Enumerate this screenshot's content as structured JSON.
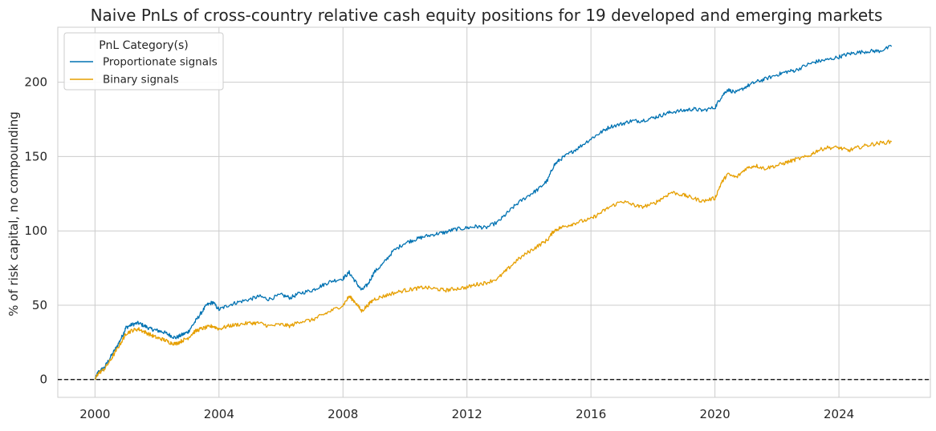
{
  "chart_data": {
    "type": "line",
    "title": "Naive PnLs of cross-country relative cash equity positions for 19 developed and emerging markets",
    "xlabel": "",
    "ylabel": "% of risk capital, no compounding",
    "xlim": [
      1998.8,
      2026.95
    ],
    "ylim": [
      -12,
      237
    ],
    "x_ticks": [
      2000,
      2004,
      2008,
      2012,
      2016,
      2020,
      2024
    ],
    "x_tick_labels": [
      "2000",
      "2004",
      "2008",
      "2012",
      "2016",
      "2020",
      "2024"
    ],
    "y_ticks": [
      0,
      50,
      100,
      150,
      200
    ],
    "y_tick_labels": [
      "0",
      "50",
      "100",
      "150",
      "200"
    ],
    "grid": true,
    "zero_line": {
      "value": 0,
      "style": "dashed",
      "color": "#000000"
    },
    "legend": {
      "title": "PnL Category(s)",
      "placement": "top-left"
    },
    "series": [
      {
        "name": "Proportionate signals",
        "color": "#0072b2",
        "x": [
          2000.0,
          2000.1,
          2000.3,
          2000.5,
          2000.7,
          2000.9,
          2001.0,
          2001.2,
          2001.4,
          2001.6,
          2001.8,
          2002.0,
          2002.2,
          2002.4,
          2002.6,
          2002.8,
          2003.0,
          2003.2,
          2003.4,
          2003.6,
          2003.8,
          2004.0,
          2004.3,
          2004.6,
          2005.0,
          2005.3,
          2005.6,
          2006.0,
          2006.3,
          2006.6,
          2007.0,
          2007.3,
          2007.6,
          2008.0,
          2008.2,
          2008.4,
          2008.6,
          2008.8,
          2009.0,
          2009.3,
          2009.6,
          2010.0,
          2010.3,
          2010.6,
          2011.0,
          2011.3,
          2011.6,
          2012.0,
          2012.3,
          2012.6,
          2013.0,
          2013.3,
          2013.6,
          2014.0,
          2014.3,
          2014.6,
          2014.8,
          2015.0,
          2015.3,
          2015.6,
          2016.0,
          2016.3,
          2016.6,
          2017.0,
          2017.3,
          2017.6,
          2018.0,
          2018.3,
          2018.6,
          2019.0,
          2019.3,
          2019.6,
          2020.0,
          2020.2,
          2020.4,
          2020.7,
          2021.0,
          2021.3,
          2021.6,
          2022.0,
          2022.3,
          2022.6,
          2023.0,
          2023.3,
          2023.6,
          2024.0,
          2024.3,
          2024.6,
          2025.0,
          2025.3,
          2025.7
        ],
        "values": [
          0,
          5,
          8,
          15,
          22,
          30,
          35,
          37,
          38,
          36,
          34,
          33,
          32,
          30,
          28,
          30,
          32,
          38,
          44,
          50,
          52,
          47,
          50,
          52,
          54,
          56,
          54,
          57,
          55,
          58,
          60,
          63,
          66,
          68,
          72,
          66,
          60,
          64,
          72,
          78,
          86,
          92,
          94,
          96,
          98,
          99,
          101,
          102,
          103,
          102,
          106,
          112,
          118,
          124,
          128,
          134,
          144,
          148,
          152,
          156,
          162,
          166,
          170,
          172,
          174,
          174,
          176,
          178,
          180,
          181,
          182,
          181,
          183,
          190,
          195,
          193,
          197,
          200,
          202,
          205,
          207,
          208,
          212,
          214,
          215,
          217,
          219,
          220,
          221,
          221,
          224
        ]
      },
      {
        "name": "Binary signals",
        "color": "#e69f00",
        "x": [
          2000.0,
          2000.1,
          2000.3,
          2000.5,
          2000.7,
          2000.9,
          2001.0,
          2001.2,
          2001.4,
          2001.6,
          2001.8,
          2002.0,
          2002.2,
          2002.4,
          2002.6,
          2002.8,
          2003.0,
          2003.2,
          2003.4,
          2003.6,
          2003.8,
          2004.0,
          2004.3,
          2004.6,
          2005.0,
          2005.3,
          2005.6,
          2006.0,
          2006.3,
          2006.6,
          2007.0,
          2007.3,
          2007.6,
          2008.0,
          2008.2,
          2008.4,
          2008.6,
          2008.8,
          2009.0,
          2009.3,
          2009.6,
          2010.0,
          2010.3,
          2010.6,
          2011.0,
          2011.3,
          2011.6,
          2012.0,
          2012.3,
          2012.6,
          2013.0,
          2013.3,
          2013.6,
          2014.0,
          2014.3,
          2014.6,
          2014.8,
          2015.0,
          2015.3,
          2015.6,
          2016.0,
          2016.3,
          2016.6,
          2017.0,
          2017.3,
          2017.6,
          2018.0,
          2018.3,
          2018.6,
          2019.0,
          2019.3,
          2019.6,
          2020.0,
          2020.2,
          2020.4,
          2020.7,
          2021.0,
          2021.3,
          2021.6,
          2022.0,
          2022.3,
          2022.6,
          2023.0,
          2023.3,
          2023.6,
          2024.0,
          2024.3,
          2024.6,
          2025.0,
          2025.3,
          2025.7
        ],
        "values": [
          0,
          4,
          7,
          13,
          20,
          27,
          31,
          33,
          34,
          32,
          30,
          28,
          27,
          25,
          24,
          26,
          28,
          32,
          34,
          35,
          36,
          34,
          36,
          37,
          38,
          38,
          36,
          37,
          36,
          39,
          40,
          43,
          46,
          50,
          56,
          52,
          46,
          50,
          54,
          56,
          58,
          60,
          61,
          62,
          61,
          60,
          61,
          62,
          64,
          65,
          68,
          74,
          80,
          86,
          90,
          94,
          100,
          102,
          104,
          106,
          108,
          112,
          116,
          120,
          118,
          116,
          118,
          122,
          126,
          124,
          122,
          120,
          122,
          132,
          138,
          136,
          142,
          144,
          142,
          144,
          146,
          148,
          150,
          154,
          156,
          156,
          154,
          156,
          158,
          159,
          160
        ]
      }
    ]
  }
}
